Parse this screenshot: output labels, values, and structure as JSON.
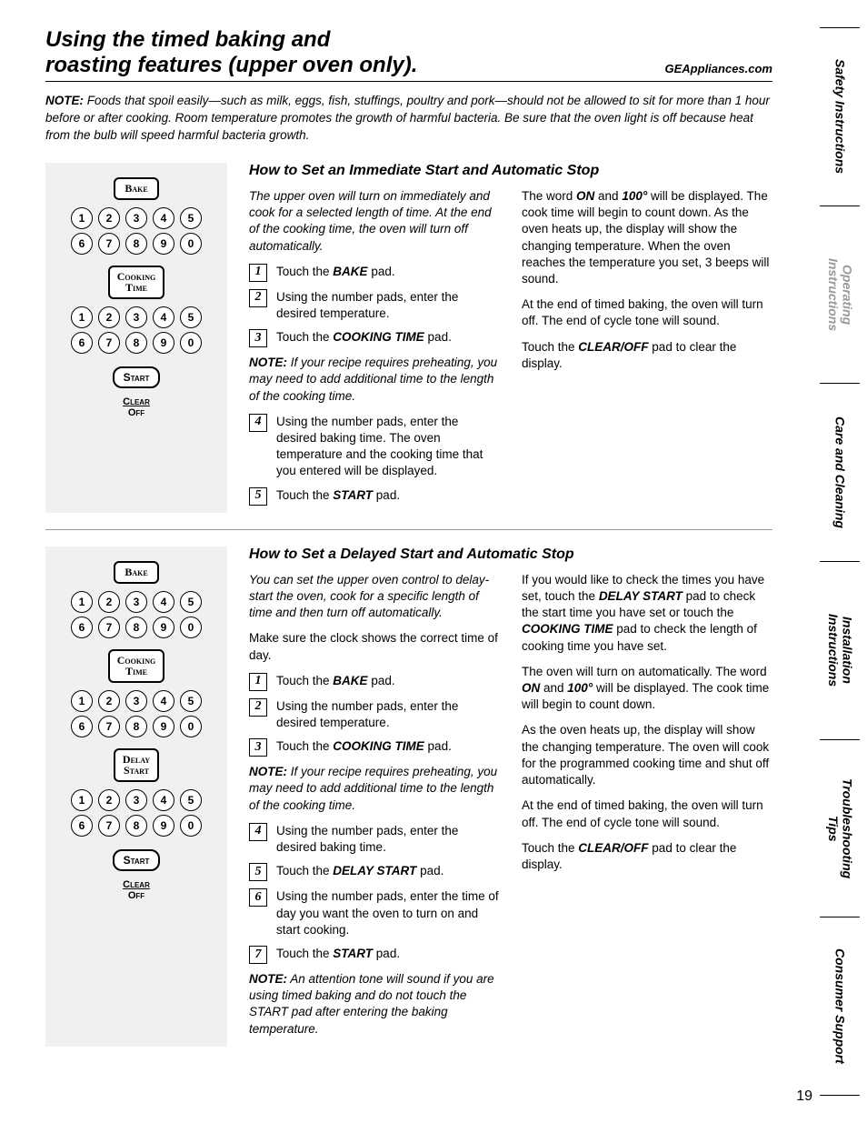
{
  "header": {
    "title_line1": "Using the timed baking and",
    "title_line2": "roasting features (upper oven only).",
    "site": "GEAppliances.com"
  },
  "top_note": {
    "label": "NOTE:",
    "text": " Foods that spoil easily—such as milk, eggs, fish, stuffings, poultry and pork—should not be allowed to sit for more than 1 hour before or after cooking. Room temperature promotes the growth of harmful bacteria. Be sure that the oven light is off because heat from the bulb will speed harmful bacteria growth."
  },
  "section1": {
    "heading": "How to Set an Immediate Start and Automatic Stop",
    "intro": "The upper oven will turn on immediately and cook for a selected length of time. At the end of the cooking time, the oven will turn off automatically.",
    "step1": "Touch the BAKE pad.",
    "step2": "Using the number pads, enter the desired temperature.",
    "step3": "Touch the COOKING TIME pad.",
    "subnote1_label": "NOTE:",
    "subnote1_text": " If your recipe requires preheating, you may need to add additional time to the length of the cooking time.",
    "step4": "Using the number pads, enter the desired baking time. The oven temperature and the cooking time that you entered will be displayed.",
    "step5": "Touch the START pad.",
    "right_p1_a": "The word ",
    "right_p1_on": "ON",
    "right_p1_b": " and ",
    "right_p1_100": "100°",
    "right_p1_c": " will be displayed. The cook time will begin to count down. As the oven heats up, the display will show the changing temperature. When the oven reaches the temperature you set, 3 beeps will sound.",
    "right_p2": "At the end of timed baking, the oven will turn off. The end of cycle tone will sound.",
    "right_p3_a": "Touch the ",
    "right_p3_pad": "CLEAR/OFF",
    "right_p3_b": " pad to clear the display."
  },
  "section2": {
    "heading": "How to Set a Delayed Start and Automatic Stop",
    "intro": "You can set the upper oven control to delay-start the oven, cook for a specific length of time and then turn off automatically.",
    "pre_para": "Make sure the clock shows the correct time of day.",
    "step1": "Touch the BAKE pad.",
    "step2": "Using the number pads, enter the desired temperature.",
    "step3": "Touch the COOKING TIME pad.",
    "subnote1_label": "NOTE:",
    "subnote1_text": " If your recipe requires preheating, you may need to add additional time to the length of the cooking time.",
    "step4": "Using the number pads, enter the desired baking time.",
    "step5": "Touch the DELAY START pad.",
    "step6": "Using the number pads, enter the time of day you want the oven to turn on and start cooking.",
    "step7": "Touch the START pad.",
    "subnote2_label": "NOTE:",
    "subnote2_text": " An attention tone will sound if you are using timed baking and do not touch the START pad after entering the baking temperature.",
    "right_p1_a": "If you would like to check the times you have set, touch the ",
    "right_p1_ds": "DELAY START",
    "right_p1_b": " pad to check the start time you have set or touch the ",
    "right_p1_ct": "COOKING TIME",
    "right_p1_c": " pad to check the length of cooking time you have set.",
    "right_p2_a": "The oven will turn on automatically. The word ",
    "right_p2_on": "ON",
    "right_p2_b": " and ",
    "right_p2_100": "100°",
    "right_p2_c": " will be displayed. The cook time will begin to count down.",
    "right_p3": "As the oven heats up, the display will show the changing temperature. The oven will cook for the programmed cooking time and shut off automatically.",
    "right_p4": "At the end of timed baking, the oven will turn off. The end of cycle tone will sound.",
    "right_p5_a": "Touch the ",
    "right_p5_pad": "CLEAR/OFF",
    "right_p5_b": " pad to clear the display."
  },
  "pads": {
    "bake": "Bake",
    "cooking_time_l1": "Cooking",
    "cooking_time_l2": "Time",
    "delay_start_l1": "Delay",
    "delay_start_l2": "Start",
    "start": "Start",
    "clear": "Clear",
    "off": "Off",
    "digits_row1": [
      "1",
      "2",
      "3",
      "4",
      "5"
    ],
    "digits_row2": [
      "6",
      "7",
      "8",
      "9",
      "0"
    ]
  },
  "tabs": {
    "t1": "Safety Instructions",
    "t2": "Operating\nInstructions",
    "t3": "Care and Cleaning",
    "t4": "Installation\nInstructions",
    "t5": "Troubleshooting\nTips",
    "t6": "Consumer Support"
  },
  "page_number": "19"
}
